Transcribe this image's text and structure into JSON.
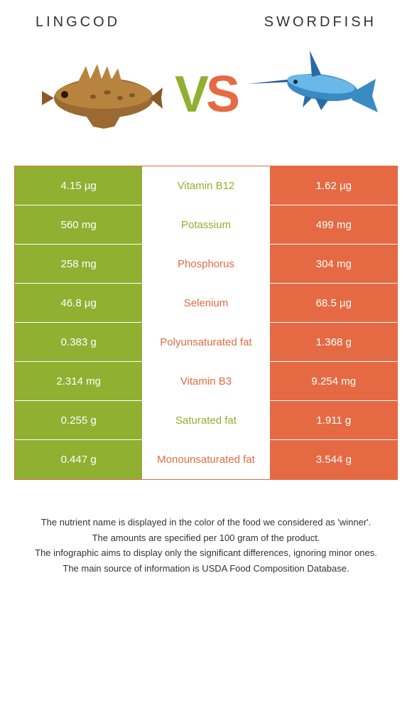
{
  "header": {
    "left": "Lingcod",
    "right": "Swordfish"
  },
  "vs": {
    "v": "V",
    "s": "S"
  },
  "colors": {
    "green": "#8fb031",
    "orange": "#e56a43"
  },
  "rows": [
    {
      "left": "4.15 µg",
      "nutrient": "Vitamin B12",
      "right": "1.62 µg",
      "winner": "green"
    },
    {
      "left": "560 mg",
      "nutrient": "Potassium",
      "right": "499 mg",
      "winner": "green"
    },
    {
      "left": "258 mg",
      "nutrient": "Phosphorus",
      "right": "304 mg",
      "winner": "orange"
    },
    {
      "left": "46.8 µg",
      "nutrient": "Selenium",
      "right": "68.5 µg",
      "winner": "orange"
    },
    {
      "left": "0.383 g",
      "nutrient": "Polyunsaturated fat",
      "right": "1.368 g",
      "winner": "orange"
    },
    {
      "left": "2.314 mg",
      "nutrient": "Vitamin B3",
      "right": "9.254 mg",
      "winner": "orange"
    },
    {
      "left": "0.255 g",
      "nutrient": "Saturated fat",
      "right": "1.911 g",
      "winner": "green"
    },
    {
      "left": "0.447 g",
      "nutrient": "Monounsaturated fat",
      "right": "3.544 g",
      "winner": "orange"
    }
  ],
  "footer": {
    "l1": "The nutrient name is displayed in the color of the food we considered as 'winner'.",
    "l2": "The amounts are specified per 100 gram of the product.",
    "l3": "The infographic aims to display only the significant differences, ignoring minor ones.",
    "l4": "The main source of information is USDA Food Composition Database."
  }
}
